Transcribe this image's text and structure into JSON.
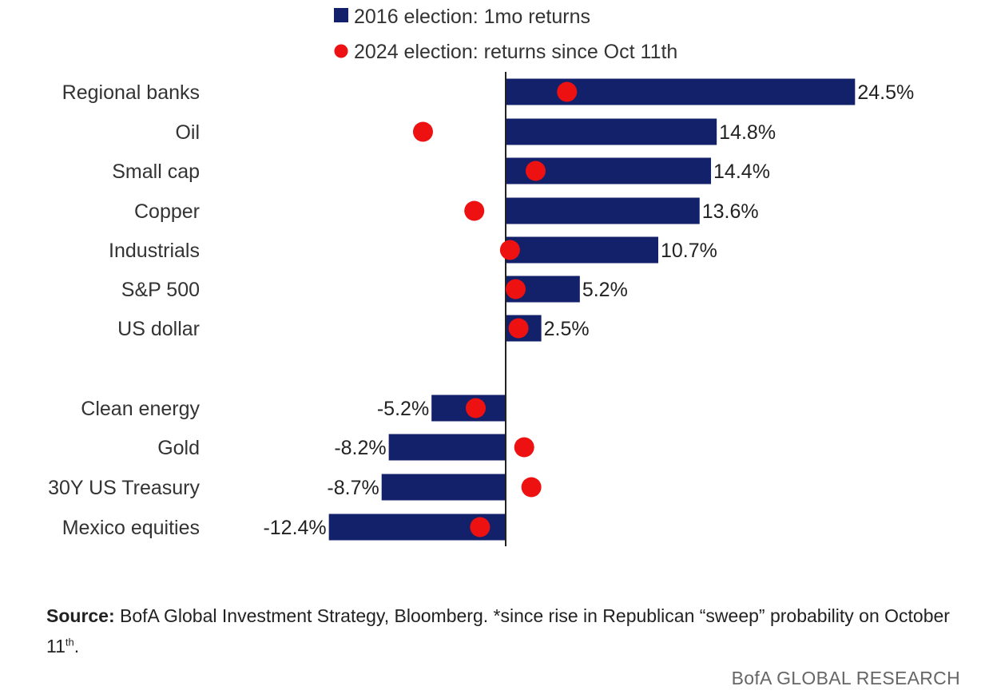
{
  "chart_data": {
    "type": "bar",
    "orientation": "horizontal",
    "categories": [
      "Regional banks",
      "Oil",
      "Small cap",
      "Copper",
      "Industrials",
      "S&P 500",
      "US dollar",
      "Clean energy",
      "Gold",
      "30Y US Treasury",
      "Mexico equities"
    ],
    "series": [
      {
        "name": "2016 election: 1mo returns",
        "type": "bar",
        "values": [
          24.5,
          14.8,
          14.4,
          13.6,
          10.7,
          5.2,
          2.5,
          -5.2,
          -8.2,
          -8.7,
          -12.4
        ],
        "value_labels": [
          "24.5%",
          "14.8%",
          "14.4%",
          "13.6%",
          "10.7%",
          "5.2%",
          "2.5%",
          "-5.2%",
          "-8.2%",
          "-8.7%",
          "-12.4%"
        ]
      },
      {
        "name": "2024 election: returns since Oct 11th",
        "type": "dot",
        "values": [
          4.3,
          -5.8,
          2.1,
          -2.2,
          0.3,
          0.7,
          0.9,
          -2.1,
          1.3,
          1.8,
          -1.8
        ]
      }
    ],
    "legend_position": "top",
    "grid": false,
    "colors": {
      "bar": "#13216a",
      "dot": "#ee1111",
      "axis": "#222222"
    }
  },
  "footer": {
    "source_label": "Source:",
    "source_text": " BofA Global Investment Strategy, Bloomberg. *since rise in Republican “sweep” probability on October 11",
    "source_superscript": "th",
    "source_end": ".",
    "brand": "BofA GLOBAL RESEARCH"
  }
}
